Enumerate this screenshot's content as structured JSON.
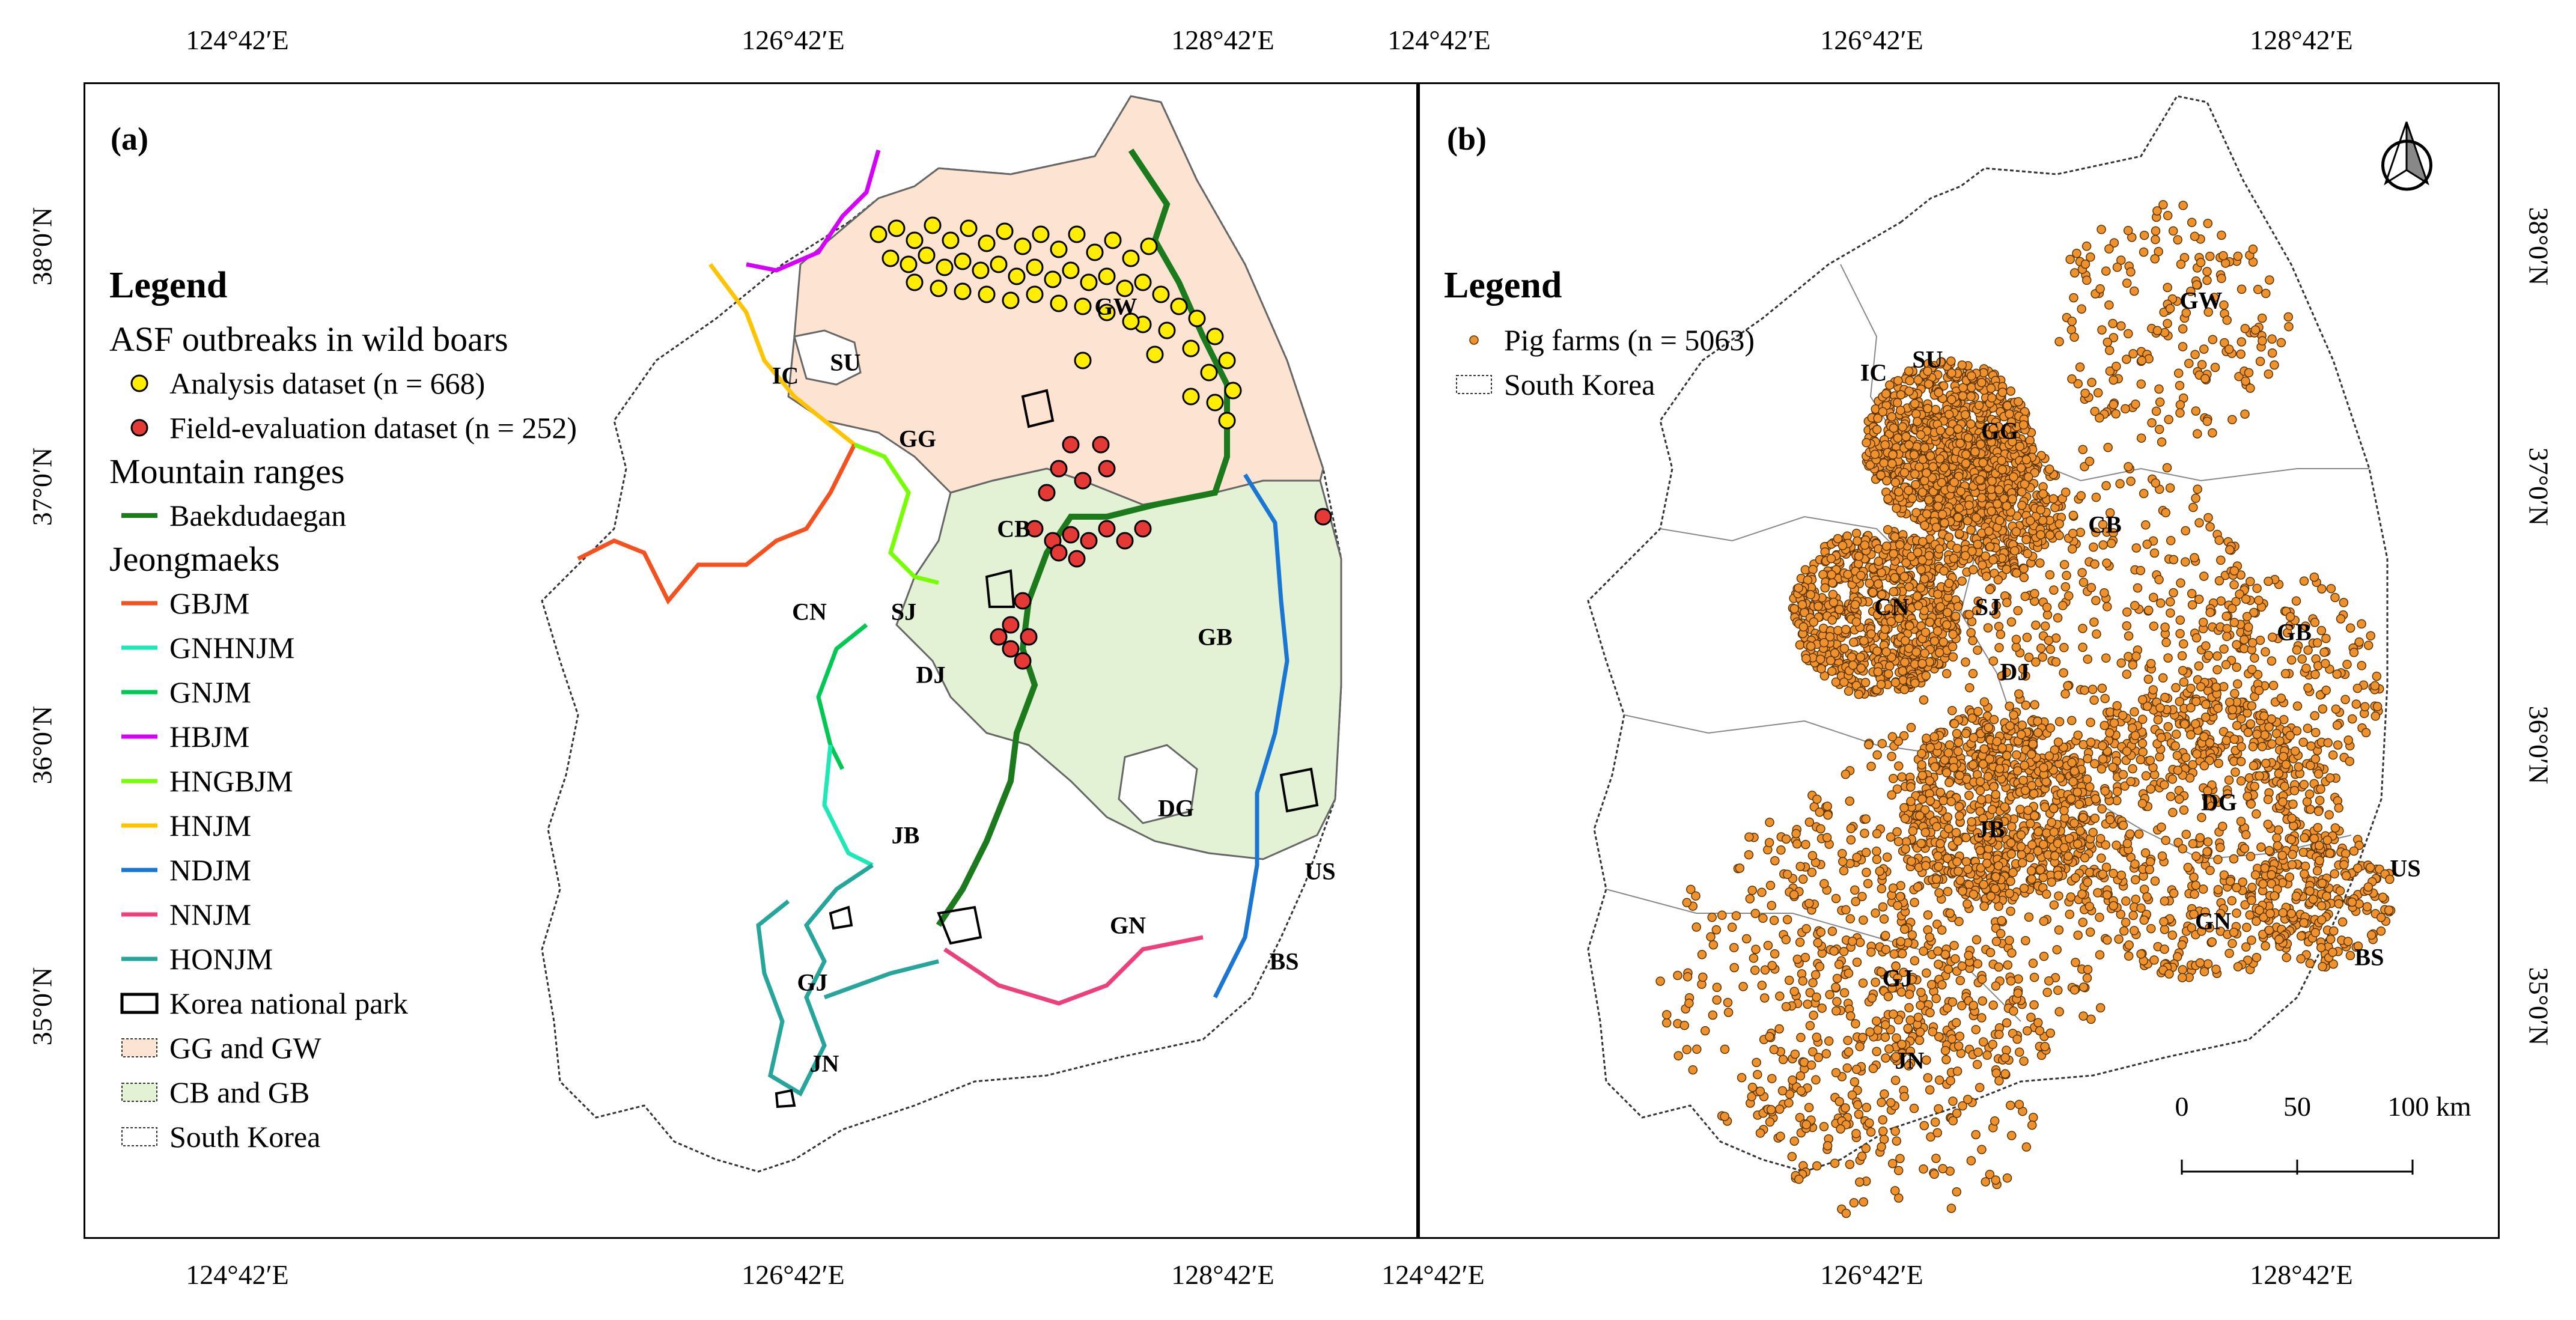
{
  "coords": {
    "top_a": [
      "124°42′E",
      "126°42′E",
      "128°42′E"
    ],
    "top_b": [
      "124°42′E",
      "126°42′E",
      "128°42′E"
    ],
    "bottom_a": [
      "124°42′E",
      "126°42′E",
      "128°42′E"
    ],
    "bottom_b": [
      "124°42′E",
      "126°42′E",
      "128°42′E"
    ],
    "left": [
      "38°0′N",
      "37°0′N",
      "36°0′N",
      "35°0′N"
    ],
    "right": [
      "38°0′N",
      "37°0′N",
      "36°0′N",
      "35°0′N"
    ]
  },
  "panel_a": {
    "label": "(a)",
    "legend": {
      "title": "Legend",
      "section_outbreaks": "ASF outbreaks in wild boars",
      "analysis": "Analysis dataset (n = 668)",
      "field": "Field-evaluation dataset (n = 252)",
      "section_mountains": "Mountain ranges",
      "baekdu": "Baekdudaegan",
      "section_jeong": "Jeongmaeks",
      "jeongmaeks": [
        {
          "label": "GBJM",
          "color": "#f4511e"
        },
        {
          "label": "GNHNJM",
          "color": "#1de9b6"
        },
        {
          "label": "GNJM",
          "color": "#00c853"
        },
        {
          "label": "HBJM",
          "color": "#d500f9"
        },
        {
          "label": "HNGBJM",
          "color": "#76ff03"
        },
        {
          "label": "HNJM",
          "color": "#ffc400"
        },
        {
          "label": "NDJM",
          "color": "#1976d2"
        },
        {
          "label": "NNJM",
          "color": "#ec407a"
        },
        {
          "label": "HONJM",
          "color": "#26a69a"
        }
      ],
      "national_park": "Korea national park",
      "gg_gw": "GG and GW",
      "cb_gb": "CB and GB",
      "south_korea": "South Korea"
    },
    "regions": [
      "SU",
      "IC",
      "GG",
      "GW",
      "CB",
      "CN",
      "SJ",
      "DJ",
      "GB",
      "DG",
      "JB",
      "US",
      "GN",
      "BS",
      "GJ",
      "JN"
    ]
  },
  "panel_b": {
    "label": "(b)",
    "legend": {
      "title": "Legend",
      "pig_farms": "Pig farms (n = 5063)",
      "south_korea": "South Korea"
    },
    "regions": [
      "SU",
      "IC",
      "GW",
      "GG",
      "CB",
      "CN",
      "SJ",
      "GB",
      "DJ",
      "DG",
      "JB",
      "US",
      "GN",
      "BS",
      "GJ",
      "JN"
    ],
    "scalebar": [
      "0",
      "50",
      "100 km"
    ]
  },
  "colors": {
    "gg_gw_fill": "#fde3d2",
    "cb_gb_fill": "#e3f2d4",
    "analysis_point": "#ffee00",
    "field_point": "#e53935",
    "pig_farm": "#f0922c",
    "baekdudaegan": "#1b7a1b"
  },
  "icons": {
    "north_arrow": "north-arrow-icon"
  }
}
